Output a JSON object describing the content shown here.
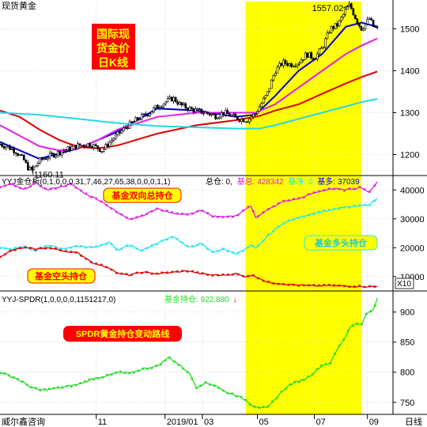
{
  "header": {
    "title": "现货黄金",
    "footer_source": "威尔鑫咨询",
    "footer_right": "日线"
  },
  "colors": {
    "background": "#ffffff",
    "grid": "#c8c8c8",
    "highlight": "#ffff00",
    "candle": "#000000",
    "ma_blue": "#0000cc",
    "ma_magenta": "#e020e0",
    "ma_red": "#dd0000",
    "ma_cyan": "#22d8e8",
    "fund_total": "#e020e0",
    "fund_long": "#22e8f0",
    "fund_short": "#dd0000",
    "spdr": "#22dd22",
    "label_red": "#ff0000",
    "label_yellow": "#ffff00",
    "info_blue": "#0000ff"
  },
  "chart_data": [
    {
      "type": "candlestick",
      "name": "spot-gold-daily",
      "title": "国际现货金价日K线",
      "title_lines": [
        "国际现",
        "货金价",
        "日K线"
      ],
      "x_ticks": [
        "11",
        "2019/01",
        "03",
        "05",
        "07",
        "09"
      ],
      "ylim": [
        1150,
        1565
      ],
      "y_ticks": [
        1200,
        1300,
        1400,
        1500
      ],
      "annotations": [
        {
          "text": "1557.02",
          "x": 0.89,
          "y": 1557.02
        },
        {
          "text": "1160.11",
          "x": 0.09,
          "y": 1160.11
        }
      ],
      "highlight_x_range": [
        0.625,
        0.92
      ],
      "price_path": [
        [
          0.0,
          1225
        ],
        [
          0.02,
          1218
        ],
        [
          0.04,
          1208
        ],
        [
          0.06,
          1188
        ],
        [
          0.07,
          1170
        ],
        [
          0.08,
          1161
        ],
        [
          0.1,
          1185
        ],
        [
          0.12,
          1195
        ],
        [
          0.15,
          1205
        ],
        [
          0.17,
          1212
        ],
        [
          0.2,
          1222
        ],
        [
          0.23,
          1225
        ],
        [
          0.26,
          1210
        ],
        [
          0.29,
          1240
        ],
        [
          0.32,
          1265
        ],
        [
          0.35,
          1285
        ],
        [
          0.38,
          1300
        ],
        [
          0.4,
          1315
        ],
        [
          0.42,
          1325
        ],
        [
          0.44,
          1335
        ],
        [
          0.46,
          1318
        ],
        [
          0.48,
          1310
        ],
        [
          0.5,
          1305
        ],
        [
          0.53,
          1298
        ],
        [
          0.55,
          1292
        ],
        [
          0.57,
          1300
        ],
        [
          0.59,
          1292
        ],
        [
          0.61,
          1285
        ],
        [
          0.63,
          1283
        ],
        [
          0.65,
          1298
        ],
        [
          0.67,
          1330
        ],
        [
          0.68,
          1345
        ],
        [
          0.7,
          1400
        ],
        [
          0.72,
          1420
        ],
        [
          0.74,
          1415
        ],
        [
          0.76,
          1420
        ],
        [
          0.78,
          1440
        ],
        [
          0.8,
          1430
        ],
        [
          0.82,
          1455
        ],
        [
          0.84,
          1500
        ],
        [
          0.86,
          1510
        ],
        [
          0.88,
          1545
        ],
        [
          0.89,
          1557
        ],
        [
          0.91,
          1515
        ],
        [
          0.92,
          1500
        ],
        [
          0.93,
          1512
        ],
        [
          0.94,
          1525
        ],
        [
          0.95,
          1505
        ],
        [
          0.96,
          1500
        ]
      ],
      "moving_averages": [
        {
          "color": "#0000cc",
          "points": [
            [
              0.0,
              1230
            ],
            [
              0.1,
              1190
            ],
            [
              0.2,
              1215
            ],
            [
              0.3,
              1255
            ],
            [
              0.4,
              1310
            ],
            [
              0.5,
              1305
            ],
            [
              0.6,
              1290
            ],
            [
              0.65,
              1295
            ],
            [
              0.7,
              1340
            ],
            [
              0.76,
              1400
            ],
            [
              0.82,
              1440
            ],
            [
              0.88,
              1505
            ],
            [
              0.92,
              1515
            ],
            [
              0.96,
              1505
            ]
          ]
        },
        {
          "color": "#e020e0",
          "points": [
            [
              0.0,
              1270
            ],
            [
              0.05,
              1245
            ],
            [
              0.1,
              1220
            ],
            [
              0.15,
              1210
            ],
            [
              0.2,
              1215
            ],
            [
              0.25,
              1235
            ],
            [
              0.3,
              1260
            ],
            [
              0.4,
              1290
            ],
            [
              0.5,
              1300
            ],
            [
              0.6,
              1300
            ],
            [
              0.65,
              1300
            ],
            [
              0.7,
              1320
            ],
            [
              0.76,
              1360
            ],
            [
              0.82,
              1400
            ],
            [
              0.88,
              1440
            ],
            [
              0.92,
              1460
            ],
            [
              0.96,
              1477
            ]
          ]
        },
        {
          "color": "#dd0000",
          "points": [
            [
              0.0,
              1305
            ],
            [
              0.05,
              1290
            ],
            [
              0.1,
              1260
            ],
            [
              0.15,
              1235
            ],
            [
              0.2,
              1218
            ],
            [
              0.25,
              1215
            ],
            [
              0.3,
              1222
            ],
            [
              0.4,
              1250
            ],
            [
              0.5,
              1270
            ],
            [
              0.6,
              1282
            ],
            [
              0.66,
              1292
            ],
            [
              0.7,
              1305
            ],
            [
              0.76,
              1320
            ],
            [
              0.82,
              1345
            ],
            [
              0.88,
              1370
            ],
            [
              0.92,
              1385
            ],
            [
              0.96,
              1398
            ]
          ]
        },
        {
          "color": "#22d8e8",
          "points": [
            [
              0.0,
              1300
            ],
            [
              0.1,
              1295
            ],
            [
              0.2,
              1285
            ],
            [
              0.3,
              1275
            ],
            [
              0.4,
              1268
            ],
            [
              0.5,
              1265
            ],
            [
              0.6,
              1262
            ],
            [
              0.66,
              1262
            ],
            [
              0.7,
              1270
            ],
            [
              0.76,
              1285
            ],
            [
              0.82,
              1300
            ],
            [
              0.88,
              1315
            ],
            [
              0.92,
              1325
            ],
            [
              0.96,
              1333
            ]
          ]
        }
      ]
    },
    {
      "type": "line",
      "name": "fund-positions",
      "indicator_label": "YYJ金仓析(0,1,0,0,0,31,7,46,27,65,38,0,0,0,1,1)",
      "info": [
        {
          "text": "总仓: 0,",
          "color": "#000000"
        },
        {
          "text": "基总: 428342",
          "color": "#e020e0"
        },
        {
          "text": "基净: 0",
          "color": "#22e8f0"
        },
        {
          "text": "基多: 37039",
          "color": "#0000ff"
        }
      ],
      "unit_label": "X10",
      "ylim": [
        5000,
        45000
      ],
      "y_ticks": [
        10000,
        20000,
        30000,
        40000
      ],
      "series": [
        {
          "name": "基金双向总持仓",
          "color": "#e020e0",
          "points": [
            [
              0.0,
              41000
            ],
            [
              0.03,
              42000
            ],
            [
              0.06,
              40000
            ],
            [
              0.09,
              42500
            ],
            [
              0.12,
              40000
            ],
            [
              0.15,
              41000
            ],
            [
              0.18,
              42000
            ],
            [
              0.22,
              38500
            ],
            [
              0.26,
              36000
            ],
            [
              0.3,
              32000
            ],
            [
              0.33,
              30000
            ],
            [
              0.36,
              31000
            ],
            [
              0.4,
              33500
            ],
            [
              0.44,
              32000
            ],
            [
              0.48,
              31500
            ],
            [
              0.51,
              33000
            ],
            [
              0.54,
              31000
            ],
            [
              0.57,
              30500
            ],
            [
              0.6,
              31000
            ],
            [
              0.62,
              33000
            ],
            [
              0.64,
              34500
            ],
            [
              0.65,
              30500
            ],
            [
              0.68,
              33000
            ],
            [
              0.72,
              36000
            ],
            [
              0.76,
              37000
            ],
            [
              0.8,
              39000
            ],
            [
              0.84,
              40500
            ],
            [
              0.88,
              40000
            ],
            [
              0.92,
              41000
            ],
            [
              0.94,
              39000
            ],
            [
              0.96,
              43000
            ]
          ]
        },
        {
          "name": "基金多头持仓",
          "color": "#22e8f0",
          "points": [
            [
              0.0,
              20000
            ],
            [
              0.03,
              19500
            ],
            [
              0.06,
              20500
            ],
            [
              0.09,
              19000
            ],
            [
              0.12,
              21000
            ],
            [
              0.16,
              19500
            ],
            [
              0.2,
              20500
            ],
            [
              0.24,
              20000
            ],
            [
              0.28,
              22000
            ],
            [
              0.3,
              19000
            ],
            [
              0.33,
              21000
            ],
            [
              0.36,
              19000
            ],
            [
              0.4,
              21500
            ],
            [
              0.44,
              24000
            ],
            [
              0.48,
              20000
            ],
            [
              0.51,
              21500
            ],
            [
              0.54,
              18500
            ],
            [
              0.57,
              19500
            ],
            [
              0.6,
              18000
            ],
            [
              0.62,
              19000
            ],
            [
              0.64,
              21000
            ],
            [
              0.65,
              19500
            ],
            [
              0.68,
              24000
            ],
            [
              0.72,
              28500
            ],
            [
              0.76,
              30500
            ],
            [
              0.8,
              32000
            ],
            [
              0.84,
              33000
            ],
            [
              0.88,
              34000
            ],
            [
              0.92,
              34500
            ],
            [
              0.94,
              35000
            ],
            [
              0.96,
              37000
            ]
          ]
        },
        {
          "name": "基金空头持仓",
          "color": "#dd0000",
          "points": [
            [
              0.0,
              17000
            ],
            [
              0.03,
              19000
            ],
            [
              0.06,
              20000
            ],
            [
              0.09,
              19500
            ],
            [
              0.12,
              20000
            ],
            [
              0.16,
              19000
            ],
            [
              0.2,
              18000
            ],
            [
              0.24,
              14500
            ],
            [
              0.28,
              13000
            ],
            [
              0.3,
              11000
            ],
            [
              0.33,
              10500
            ],
            [
              0.36,
              11500
            ],
            [
              0.4,
              11000
            ],
            [
              0.44,
              11500
            ],
            [
              0.48,
              12000
            ],
            [
              0.51,
              11000
            ],
            [
              0.54,
              10500
            ],
            [
              0.57,
              10500
            ],
            [
              0.6,
              11000
            ],
            [
              0.62,
              10000
            ],
            [
              0.64,
              10500
            ],
            [
              0.66,
              9500
            ],
            [
              0.68,
              8000
            ],
            [
              0.72,
              7500
            ],
            [
              0.76,
              7000
            ],
            [
              0.8,
              6800
            ],
            [
              0.84,
              6900
            ],
            [
              0.88,
              6700
            ],
            [
              0.92,
              6600
            ],
            [
              0.94,
              6500
            ],
            [
              0.96,
              6500
            ]
          ]
        }
      ]
    },
    {
      "type": "line",
      "name": "spdr-holdings",
      "indicator_label": "YYJ-SPDR(1,0,0,0,0,1151217,0)",
      "info": [
        {
          "text": "基金持仓: 922.880",
          "color": "#22dd22"
        },
        {
          "text": "↓",
          "color": "#ff0000"
        }
      ],
      "ylim": [
        730,
        935
      ],
      "y_ticks": [
        750,
        800,
        850,
        900
      ],
      "series": [
        {
          "name": "SPDR黄金持仓变动路线",
          "color": "#22dd22",
          "points": [
            [
              0.0,
              800
            ],
            [
              0.04,
              790
            ],
            [
              0.08,
              775
            ],
            [
              0.1,
              770
            ],
            [
              0.13,
              772
            ],
            [
              0.16,
              775
            ],
            [
              0.2,
              780
            ],
            [
              0.24,
              790
            ],
            [
              0.28,
              795
            ],
            [
              0.3,
              800
            ],
            [
              0.33,
              798
            ],
            [
              0.36,
              805
            ],
            [
              0.4,
              810
            ],
            [
              0.43,
              825
            ],
            [
              0.45,
              815
            ],
            [
              0.48,
              800
            ],
            [
              0.5,
              775
            ],
            [
              0.52,
              782
            ],
            [
              0.55,
              778
            ],
            [
              0.57,
              768
            ],
            [
              0.6,
              762
            ],
            [
              0.63,
              752
            ],
            [
              0.64,
              745
            ],
            [
              0.66,
              742
            ],
            [
              0.68,
              740
            ],
            [
              0.7,
              755
            ],
            [
              0.72,
              770
            ],
            [
              0.74,
              780
            ],
            [
              0.76,
              785
            ],
            [
              0.78,
              790
            ],
            [
              0.8,
              800
            ],
            [
              0.82,
              812
            ],
            [
              0.84,
              815
            ],
            [
              0.86,
              840
            ],
            [
              0.88,
              860
            ],
            [
              0.89,
              875
            ],
            [
              0.9,
              880
            ],
            [
              0.92,
              880
            ],
            [
              0.93,
              895
            ],
            [
              0.94,
              900
            ],
            [
              0.95,
              903
            ],
            [
              0.96,
              922
            ]
          ]
        }
      ]
    }
  ],
  "callouts": {
    "fund_total": "基金双向总持仓",
    "fund_long": "基金多头持仓",
    "fund_short": "基金空头持仓",
    "spdr": "SPDR黄金持仓变动路线"
  }
}
